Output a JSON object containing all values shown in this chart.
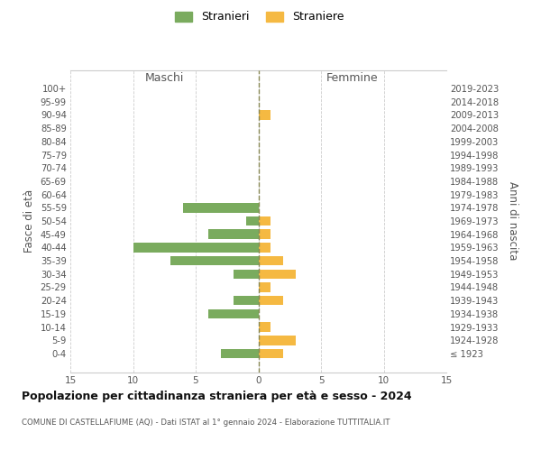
{
  "age_groups": [
    "100+",
    "95-99",
    "90-94",
    "85-89",
    "80-84",
    "75-79",
    "70-74",
    "65-69",
    "60-64",
    "55-59",
    "50-54",
    "45-49",
    "40-44",
    "35-39",
    "30-34",
    "25-29",
    "20-24",
    "15-19",
    "10-14",
    "5-9",
    "0-4"
  ],
  "birth_years": [
    "≤ 1923",
    "1924-1928",
    "1929-1933",
    "1934-1938",
    "1939-1943",
    "1944-1948",
    "1949-1953",
    "1954-1958",
    "1959-1963",
    "1964-1968",
    "1969-1973",
    "1974-1978",
    "1979-1983",
    "1984-1988",
    "1989-1993",
    "1994-1998",
    "1999-2003",
    "2004-2008",
    "2009-2013",
    "2014-2018",
    "2019-2023"
  ],
  "maschi": [
    0,
    0,
    0,
    0,
    0,
    0,
    0,
    0,
    0,
    6,
    1,
    4,
    10,
    7,
    2,
    0,
    2,
    4,
    0,
    0,
    3
  ],
  "femmine": [
    0,
    0,
    1,
    0,
    0,
    0,
    0,
    0,
    0,
    0,
    1,
    1,
    1,
    2,
    3,
    1,
    2,
    0,
    1,
    3,
    2
  ],
  "male_color": "#7aab5e",
  "female_color": "#f5b942",
  "background_color": "#ffffff",
  "grid_color": "#cccccc",
  "center_line_color": "#888855",
  "title": "Popolazione per cittadinanza straniera per età e sesso - 2024",
  "subtitle": "COMUNE DI CASTELLAFIUME (AQ) - Dati ISTAT al 1° gennaio 2024 - Elaborazione TUTTITALIA.IT",
  "ylabel_left": "Fasce di età",
  "ylabel_right": "Anni di nascita",
  "header_left": "Maschi",
  "header_right": "Femmine",
  "legend_stranieri": "Stranieri",
  "legend_straniere": "Straniere",
  "xlim": 15,
  "tick_step": 5
}
